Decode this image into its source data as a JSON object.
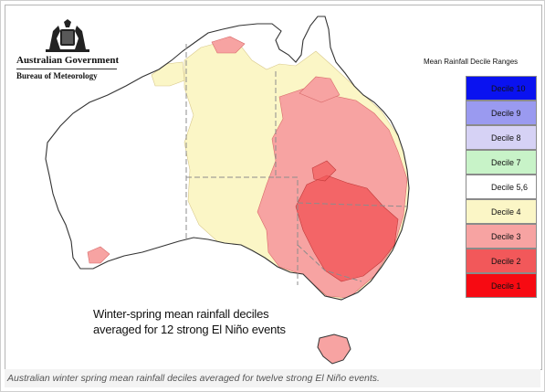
{
  "agency": {
    "government": "Australian Government",
    "bureau": "Bureau of Meteorology"
  },
  "legend": {
    "title": "Mean Rainfall Decile Ranges",
    "items": [
      {
        "label": "Decile 10",
        "color": "#0a12f0"
      },
      {
        "label": "Decile 9",
        "color": "#9a9af0"
      },
      {
        "label": "Decile 8",
        "color": "#d6d2f5"
      },
      {
        "label": "Decile 7",
        "color": "#c8f3c8"
      },
      {
        "label": "Decile 5,6",
        "color": "#ffffff"
      },
      {
        "label": "Decile 4",
        "color": "#fbf6c6"
      },
      {
        "label": "Decile 3",
        "color": "#f7a3a2"
      },
      {
        "label": "Decile 2",
        "color": "#f2585a"
      },
      {
        "label": "Decile 1",
        "color": "#f70a12"
      }
    ]
  },
  "map_caption": {
    "line1": "Winter-spring mean rainfall deciles",
    "line2": "averaged for 12 strong El Niño events"
  },
  "figure_caption": "Australian winter spring mean rainfall deciles averaged for twelve strong El Niño events.",
  "map_colors": {
    "land_normal": "#ffffff",
    "decile4": "#fbf6c6",
    "decile3": "#f7a3a2",
    "decile2": "#f2585a",
    "coast": "#333333",
    "borders": "#8c8c8c"
  }
}
